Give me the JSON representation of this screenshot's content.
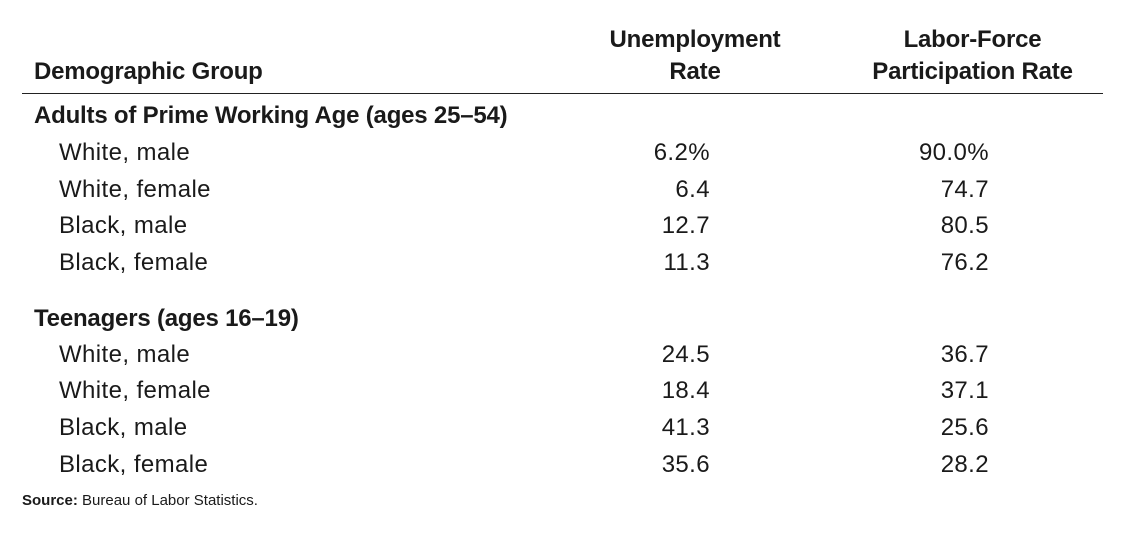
{
  "header": {
    "group": "Demographic Group",
    "unemployment_line1": "Unemployment",
    "unemployment_line2": "Rate",
    "lfpr_line1": "Labor-Force",
    "lfpr_line2": "Participation Rate"
  },
  "sections": [
    {
      "title": "Adults of Prime Working Age (ages 25–54)",
      "rows": [
        {
          "group": "White, male",
          "unemployment": "6.2%",
          "lfpr": "90.0%"
        },
        {
          "group": "White, female",
          "unemployment": "6.4",
          "lfpr": "74.7"
        },
        {
          "group": "Black, male",
          "unemployment": "12.7",
          "lfpr": "80.5"
        },
        {
          "group": "Black, female",
          "unemployment": "11.3",
          "lfpr": "76.2"
        }
      ]
    },
    {
      "title": "Teenagers (ages 16–19)",
      "rows": [
        {
          "group": "White, male",
          "unemployment": "24.5",
          "lfpr": "36.7"
        },
        {
          "group": "White, female",
          "unemployment": "18.4",
          "lfpr": "37.1"
        },
        {
          "group": "Black, male",
          "unemployment": "41.3",
          "lfpr": "25.6"
        },
        {
          "group": "Black, female",
          "unemployment": "35.6",
          "lfpr": "28.2"
        }
      ]
    }
  ],
  "source": {
    "label": "Source:",
    "text": " Bureau of Labor Statistics."
  }
}
